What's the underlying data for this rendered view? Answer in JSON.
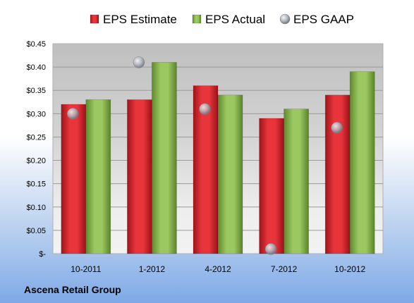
{
  "chart_data": {
    "type": "bar",
    "categories": [
      "10-2011",
      "1-2012",
      "4-2012",
      "7-2012",
      "10-2012"
    ],
    "series": [
      {
        "name": "EPS Estimate",
        "values": [
          0.32,
          0.33,
          0.36,
          0.29,
          0.34
        ],
        "color": "#d8232a",
        "kind": "bar"
      },
      {
        "name": "EPS Actual",
        "values": [
          0.33,
          0.41,
          0.34,
          0.31,
          0.39
        ],
        "color": "#8ab650",
        "kind": "bar"
      },
      {
        "name": "EPS GAAP",
        "values": [
          0.3,
          0.41,
          0.31,
          0.01,
          0.27
        ],
        "color": "#b8bcc4",
        "kind": "marker"
      }
    ],
    "ylim": [
      0,
      0.45
    ],
    "yticks": [
      0,
      0.05,
      0.1,
      0.15,
      0.2,
      0.25,
      0.3,
      0.35,
      0.4,
      0.45
    ],
    "ytick_labels": [
      "$-",
      "$0.05",
      "$0.10",
      "$0.15",
      "$0.20",
      "$0.25",
      "$0.30",
      "$0.35",
      "$0.40",
      "$0.45"
    ],
    "grid": true,
    "legend": "top"
  },
  "footer": {
    "company": "Ascena Retail Group"
  }
}
